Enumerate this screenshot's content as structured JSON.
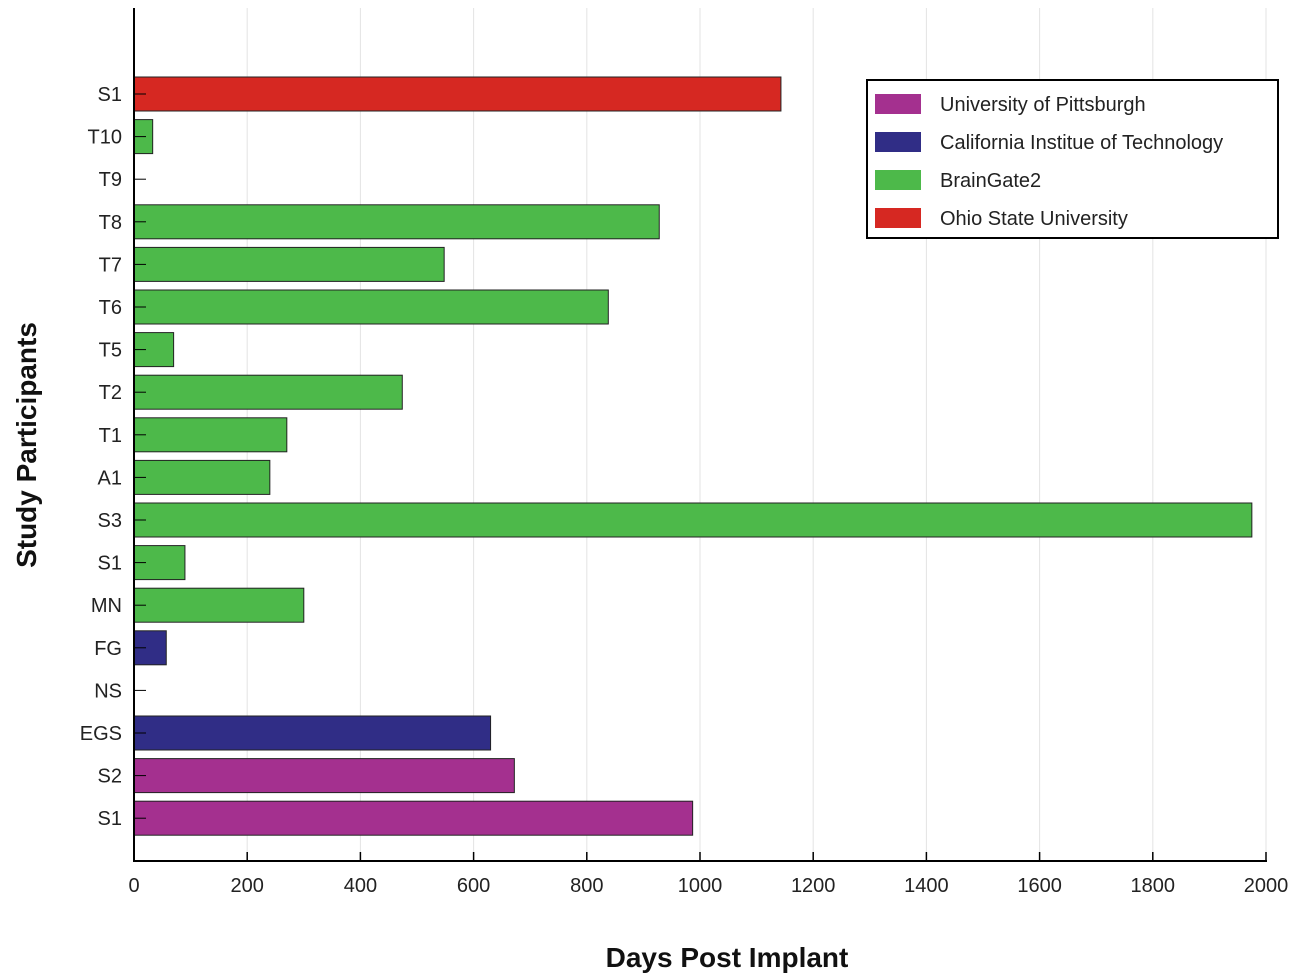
{
  "chart_data": {
    "type": "bar",
    "orientation": "horizontal",
    "title": "",
    "xlabel": "Days Post Implant",
    "ylabel": "Study Participants",
    "xlim": [
      0,
      2000
    ],
    "xticks": [
      "0",
      "200",
      "400",
      "600",
      "800",
      "1000",
      "1200",
      "1400",
      "1600",
      "1800",
      "2000"
    ],
    "grid": "vertical",
    "legend_position": "top-right",
    "categories": [
      "S1",
      "T10",
      "T9",
      "T8",
      "T7",
      "T6",
      "T5",
      "T2",
      "T1",
      "A1",
      "S3",
      "S1",
      "MN",
      "FG",
      "NS",
      "EGS",
      "S2",
      "S1"
    ],
    "values": [
      1143,
      33,
      0,
      928,
      548,
      838,
      70,
      474,
      270,
      240,
      1975,
      90,
      300,
      57,
      0,
      630,
      672,
      987
    ],
    "groups": [
      "Ohio State University",
      "BrainGate2",
      "BrainGate2",
      "BrainGate2",
      "BrainGate2",
      "BrainGate2",
      "BrainGate2",
      "BrainGate2",
      "BrainGate2",
      "BrainGate2",
      "BrainGate2",
      "BrainGate2",
      "BrainGate2",
      "California Institue of Technology",
      "California Institue of Technology",
      "California Institue of Technology",
      "University of Pittsburgh",
      "University of Pittsburgh"
    ],
    "legend": [
      {
        "name": "University of Pittsburgh",
        "color": "#a4308f"
      },
      {
        "name": "California Institue of Technology",
        "color": "#302d86"
      },
      {
        "name": "BrainGate2",
        "color": "#4db94a"
      },
      {
        "name": "Ohio State University",
        "color": "#d62822"
      }
    ]
  }
}
